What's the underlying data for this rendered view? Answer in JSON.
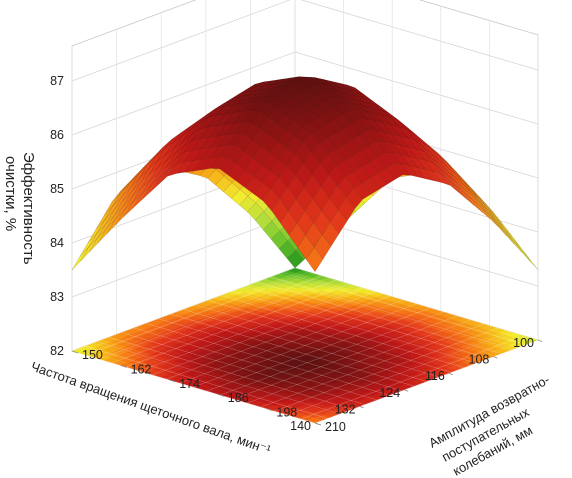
{
  "chart_data": {
    "type": "surface3d",
    "title": "",
    "z_axis": {
      "label_lines": [
        "Эффективность",
        "очистки, %"
      ],
      "ticks": [
        82,
        83,
        84,
        85,
        86,
        87
      ],
      "range": [
        82,
        87.5
      ]
    },
    "x_axis": {
      "label": "Частота вращения щеточного вала, мин⁻¹",
      "ticks": [
        100,
        108,
        116,
        124,
        132,
        140
      ],
      "range": [
        100,
        140
      ]
    },
    "y_axis": {
      "label_lines": [
        "Амплитуда возвратно-",
        "поступательных",
        "колебаний, мм"
      ],
      "ticks": [
        150,
        162,
        174,
        186,
        198,
        210
      ],
      "range": [
        150,
        210
      ]
    },
    "grid": true,
    "colormap": [
      "#1b8c19",
      "#62c02a",
      "#b7de3b",
      "#f3ec2e",
      "#f7b118",
      "#f57316",
      "#e2371b",
      "#c01818",
      "#8f1313",
      "#5a1010"
    ],
    "grid_x": [
      100,
      108,
      116,
      124,
      132,
      140
    ],
    "grid_y": [
      150,
      162,
      174,
      186,
      198,
      210
    ],
    "surface_values": [
      [
        82.0,
        83.1,
        84.2,
        84.6,
        84.2,
        83.3
      ],
      [
        83.3,
        84.5,
        85.4,
        85.8,
        85.4,
        84.5
      ],
      [
        84.3,
        85.5,
        86.4,
        86.8,
        86.4,
        85.5
      ],
      [
        84.8,
        86.0,
        86.9,
        87.3,
        86.9,
        86.0
      ],
      [
        84.6,
        85.8,
        86.7,
        87.1,
        86.7,
        85.8
      ],
      [
        83.5,
        84.7,
        85.8,
        86.2,
        85.8,
        84.8
      ]
    ]
  }
}
